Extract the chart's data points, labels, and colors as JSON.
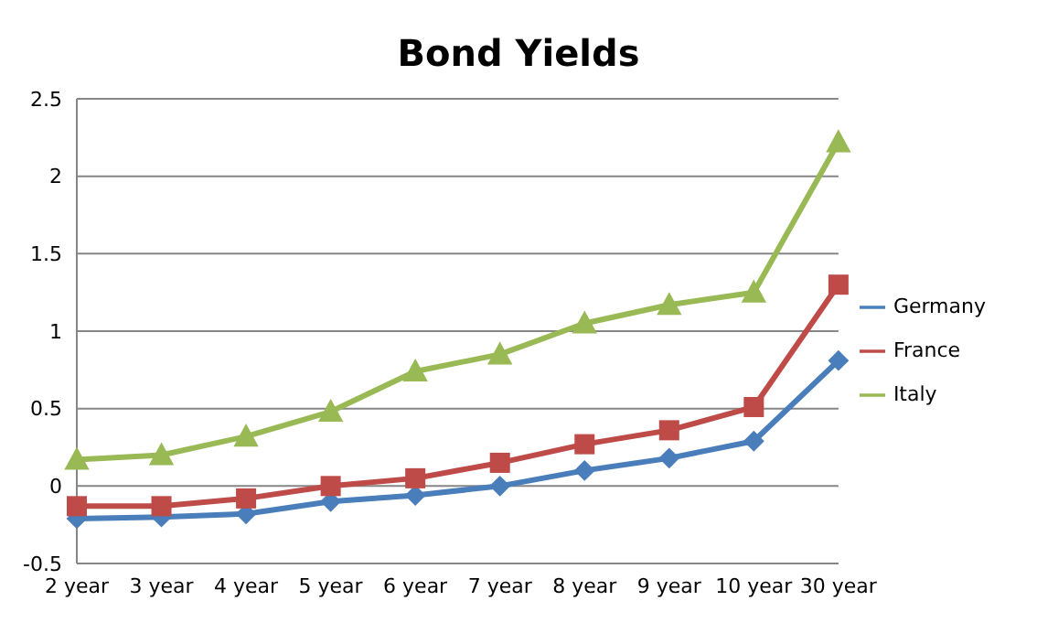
{
  "chart_data": {
    "type": "line",
    "title": "Bond Yields",
    "categories": [
      "2 year",
      "3 year",
      "4 year",
      "5 year",
      "6 year",
      "7 year",
      "8 year",
      "9 year",
      "10 year",
      "30 year"
    ],
    "series": [
      {
        "name": "Germany",
        "color": "#4a7ebb",
        "marker": "diamond",
        "values": [
          -0.21,
          -0.2,
          -0.18,
          -0.1,
          -0.06,
          0,
          0.1,
          0.18,
          0.29,
          0.81
        ]
      },
      {
        "name": "France",
        "color": "#be4b48",
        "marker": "square",
        "values": [
          -0.13,
          -0.13,
          -0.08,
          0,
          0.05,
          0.15,
          0.27,
          0.36,
          0.51,
          1.3
        ]
      },
      {
        "name": "Italy",
        "color": "#98b954",
        "marker": "triangle",
        "values": [
          0.17,
          0.2,
          0.32,
          0.48,
          0.74,
          0.85,
          1.05,
          1.17,
          1.25,
          2.22
        ]
      }
    ],
    "ylim": [
      -0.5,
      2.5
    ],
    "yticks": [
      -0.5,
      0,
      0.5,
      1,
      1.5,
      2,
      2.5
    ],
    "grid": "y",
    "legend": "right"
  }
}
